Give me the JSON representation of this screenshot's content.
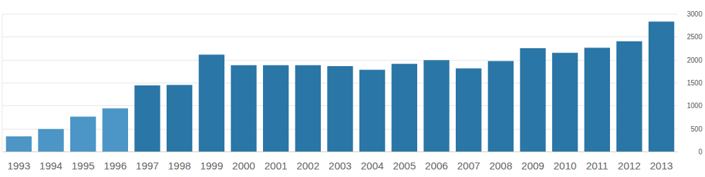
{
  "chart_data": {
    "type": "bar",
    "categories": [
      "1993",
      "1994",
      "1995",
      "1996",
      "1997",
      "1998",
      "1999",
      "2000",
      "2001",
      "2002",
      "2003",
      "2004",
      "2005",
      "2006",
      "2007",
      "2008",
      "2009",
      "2010",
      "2011",
      "2012",
      "2013"
    ],
    "values": [
      330,
      490,
      760,
      940,
      1440,
      1450,
      2110,
      1880,
      1880,
      1880,
      1860,
      1780,
      1910,
      1990,
      1810,
      1970,
      2250,
      2150,
      2260,
      2400,
      2830
    ],
    "colors": [
      "#4b96c6",
      "#4b96c6",
      "#4b96c6",
      "#4b96c6",
      "#2a76a6",
      "#2a76a6",
      "#2a76a6",
      "#2a76a6",
      "#2a76a6",
      "#2a76a6",
      "#2a76a6",
      "#2a76a6",
      "#2a76a6",
      "#2a76a6",
      "#2a76a6",
      "#2a76a6",
      "#2a76a6",
      "#2a76a6",
      "#2a76a6",
      "#2a76a6",
      "#2a76a6"
    ],
    "ylim": [
      0,
      3000
    ],
    "yticks": [
      0,
      500,
      1000,
      1500,
      2000,
      2500,
      3000
    ],
    "grid": true
  }
}
